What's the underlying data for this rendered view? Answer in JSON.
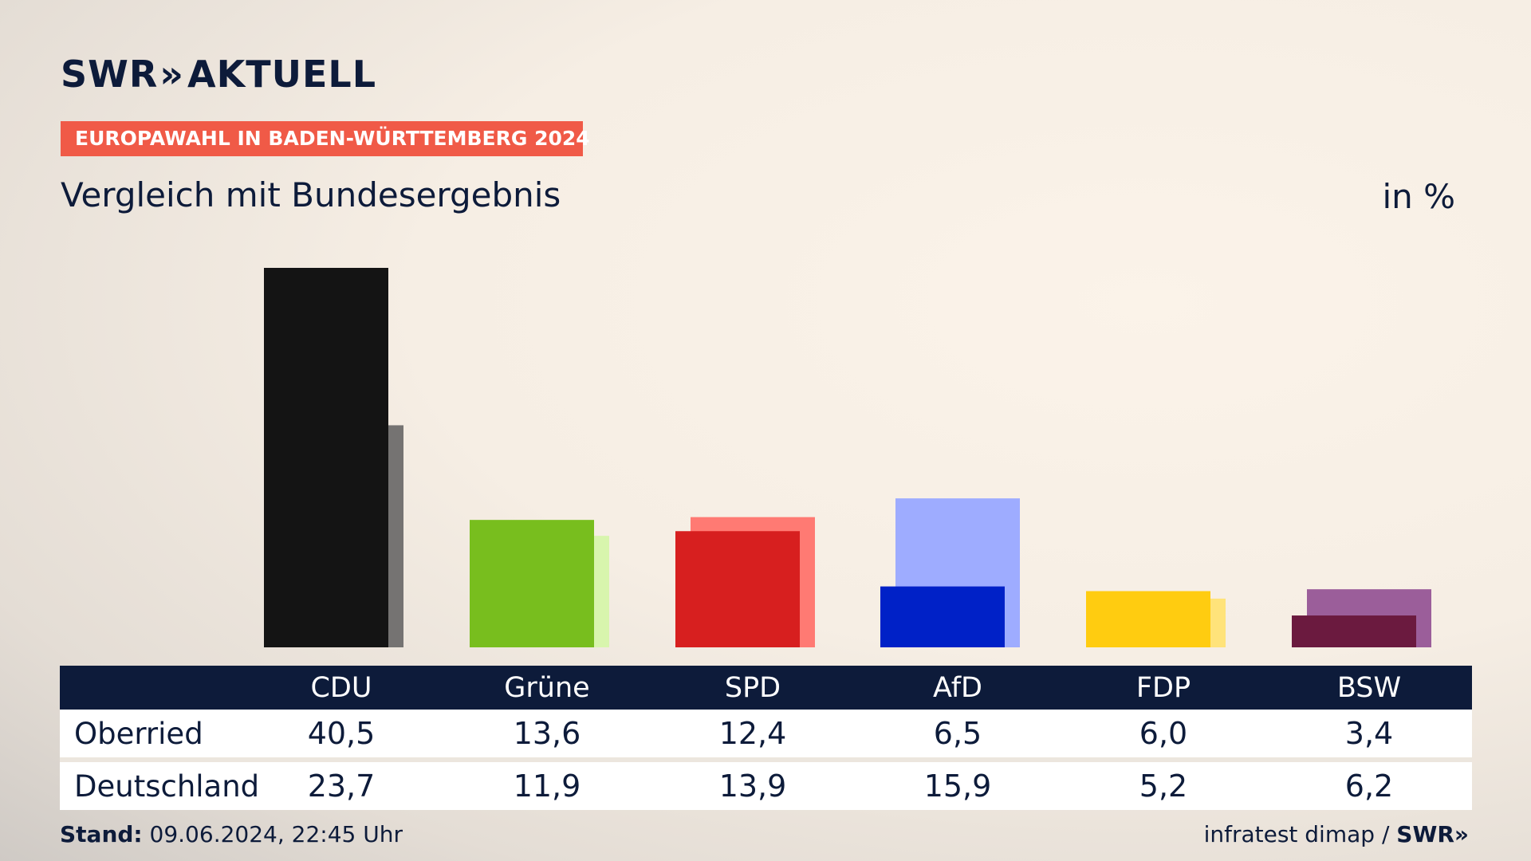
{
  "brand": {
    "logo_left": "SWR",
    "logo_arrows": "»",
    "logo_right": "AKTUELL"
  },
  "badge": "EUROPAWAHL IN BADEN-WÜRTTEMBERG 2024",
  "subtitle": "Vergleich mit Bundesergebnis",
  "unit": "in %",
  "chart_data": {
    "type": "bar",
    "categories": [
      "CDU",
      "Grüne",
      "SPD",
      "AfD",
      "FDP",
      "BSW"
    ],
    "series": [
      {
        "name": "Oberried",
        "values": [
          40.5,
          13.6,
          12.4,
          6.5,
          6.0,
          3.4
        ],
        "colors": [
          "#141414",
          "#78be1e",
          "#d71f1f",
          "#0021c7",
          "#ffcc10",
          "#6b1a3f"
        ]
      },
      {
        "name": "Deutschland",
        "values": [
          23.7,
          11.9,
          13.9,
          15.9,
          5.2,
          6.2
        ],
        "colors": [
          "#757372",
          "#d8f5ad",
          "#ff7a73",
          "#9eacff",
          "#ffe37a",
          "#9b5e9a"
        ]
      }
    ],
    "ylim": [
      0,
      40.5
    ],
    "grid": false
  },
  "table": {
    "headers": [
      "CDU",
      "Grüne",
      "SPD",
      "AfD",
      "FDP",
      "BSW"
    ],
    "rows": [
      {
        "label": "Oberried",
        "values": [
          "40,5",
          "13,6",
          "12,4",
          "6,5",
          "6,0",
          "3,4"
        ]
      },
      {
        "label": "Deutschland",
        "values": [
          "23,7",
          "11,9",
          "13,9",
          "15,9",
          "5,2",
          "6,2"
        ]
      }
    ]
  },
  "footer": {
    "stand_label": "Stand:",
    "stand_value": "09.06.2024, 22:45 Uhr",
    "source": "infratest dimap /",
    "source_brand": "SWR»"
  }
}
